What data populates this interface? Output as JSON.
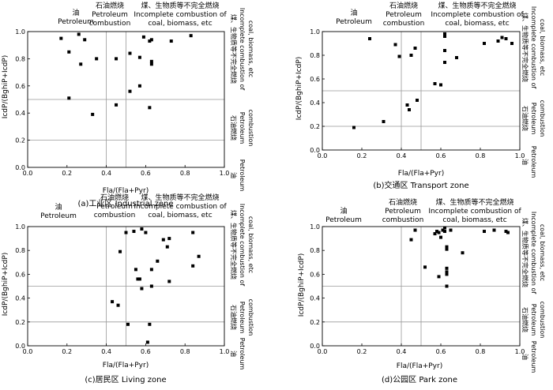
{
  "x_label": "Fla/(Fla+Pyr)",
  "y_label": "IcdP/(BghiP+IcdP)",
  "zones": {
    "oil_cn": "油",
    "oil_en": "Petroleum",
    "petcomb_cn": "石油燃烧",
    "petcomb_en1": "Petroleum",
    "petcomb_en2": "combustion",
    "coal_cn": "煤、生物质等不完全燃烧",
    "coal_en1": "Incomplete combustion of",
    "coal_en2": "coal, biomass, etc"
  },
  "styles": {
    "marker_color": "#000000",
    "guide_color": "#999999",
    "axis_color": "#000000"
  },
  "chart_data": [
    {
      "type": "scatter",
      "caption": "(a)工业区 Industrial zone",
      "xlabel": "Fla/(Fla+Pyr)",
      "ylabel": "IcdP/(BghiP+IcdP)",
      "xlim": [
        0,
        1.0
      ],
      "ylim": [
        0,
        1.0
      ],
      "xticks": [
        "0.0",
        "0.2",
        "0.4",
        "0.6",
        "0.8",
        "1.0"
      ],
      "yticks": [
        "0.0",
        "0.2",
        "0.4",
        "0.6",
        "0.8",
        "1.0"
      ],
      "guides": {
        "x": [
          0.4,
          0.5
        ],
        "y": [
          0.2,
          0.5
        ]
      },
      "points": [
        [
          0.17,
          0.95
        ],
        [
          0.21,
          0.85
        ],
        [
          0.26,
          0.98
        ],
        [
          0.27,
          0.76
        ],
        [
          0.29,
          0.94
        ],
        [
          0.35,
          0.8
        ],
        [
          0.21,
          0.51
        ],
        [
          0.33,
          0.39
        ],
        [
          0.45,
          0.8
        ],
        [
          0.52,
          0.84
        ],
        [
          0.45,
          0.46
        ],
        [
          0.52,
          0.56
        ],
        [
          0.57,
          0.81
        ],
        [
          0.57,
          0.6
        ],
        [
          0.59,
          0.96
        ],
        [
          0.62,
          0.93
        ],
        [
          0.63,
          0.94
        ],
        [
          0.63,
          0.78
        ],
        [
          0.63,
          0.76
        ],
        [
          0.62,
          0.44
        ],
        [
          0.73,
          0.93
        ],
        [
          0.83,
          0.97
        ]
      ]
    },
    {
      "type": "scatter",
      "caption": "(b)交通区 Transport zone",
      "xlabel": "Fla/(Fla+Pyr)",
      "ylabel": "IcdP/(BghiP+IcdP)",
      "xlim": [
        0,
        1.0
      ],
      "ylim": [
        0,
        1.0
      ],
      "xticks": [
        "0.0",
        "0.2",
        "0.4",
        "0.6",
        "0.8",
        "1.0"
      ],
      "yticks": [
        "0.0",
        "0.2",
        "0.4",
        "0.6",
        "0.8",
        "1.0"
      ],
      "guides": {
        "x": [
          0.4,
          0.5
        ],
        "y": [
          0.2,
          0.5
        ]
      },
      "points": [
        [
          0.16,
          0.19
        ],
        [
          0.24,
          0.94
        ],
        [
          0.31,
          0.24
        ],
        [
          0.37,
          0.89
        ],
        [
          0.39,
          0.79
        ],
        [
          0.43,
          0.38
        ],
        [
          0.44,
          0.34
        ],
        [
          0.45,
          0.8
        ],
        [
          0.47,
          0.86
        ],
        [
          0.48,
          0.42
        ],
        [
          0.57,
          0.56
        ],
        [
          0.6,
          0.55
        ],
        [
          0.62,
          0.98
        ],
        [
          0.62,
          0.96
        ],
        [
          0.62,
          0.84
        ],
        [
          0.62,
          0.74
        ],
        [
          0.68,
          0.78
        ],
        [
          0.82,
          0.9
        ],
        [
          0.89,
          0.92
        ],
        [
          0.91,
          0.95
        ],
        [
          0.93,
          0.94
        ],
        [
          0.96,
          0.9
        ]
      ]
    },
    {
      "type": "scatter",
      "caption": "(c)居民区 Living zone",
      "xlabel": "Fla/(Fla+Pyr)",
      "ylabel": "IcdP/(BghiP+IcdP)",
      "xlim": [
        0,
        1.0
      ],
      "ylim": [
        0,
        1.0
      ],
      "xticks": [
        "0.0",
        "0.2",
        "0.4",
        "0.6",
        "0.8",
        "1.0"
      ],
      "yticks": [
        "0.0",
        "0.2",
        "0.4",
        "0.6",
        "0.8",
        "1.0"
      ],
      "guides": {
        "x": [
          0.4,
          0.5
        ],
        "y": [
          0.2,
          0.5
        ]
      },
      "points": [
        [
          0.43,
          0.37
        ],
        [
          0.46,
          0.34
        ],
        [
          0.47,
          0.79
        ],
        [
          0.5,
          0.95
        ],
        [
          0.51,
          0.18
        ],
        [
          0.54,
          0.96
        ],
        [
          0.55,
          0.64
        ],
        [
          0.56,
          0.56
        ],
        [
          0.57,
          0.56
        ],
        [
          0.58,
          0.98
        ],
        [
          0.58,
          0.48
        ],
        [
          0.6,
          0.95
        ],
        [
          0.61,
          0.03
        ],
        [
          0.62,
          0.18
        ],
        [
          0.63,
          0.64
        ],
        [
          0.63,
          0.5
        ],
        [
          0.66,
          0.71
        ],
        [
          0.69,
          0.89
        ],
        [
          0.71,
          0.83
        ],
        [
          0.72,
          0.9
        ],
        [
          0.72,
          0.54
        ],
        [
          0.84,
          0.95
        ],
        [
          0.84,
          0.67
        ],
        [
          0.87,
          0.75
        ]
      ]
    },
    {
      "type": "scatter",
      "caption": "(d)公园区 Park zone",
      "xlabel": "Fla/(Fla+Pyr)",
      "ylabel": "IcdP/(BghiP+IcdP)",
      "xlim": [
        0,
        1.0
      ],
      "ylim": [
        0,
        1.0
      ],
      "xticks": [
        "0.0",
        "0.2",
        "0.4",
        "0.6",
        "0.8",
        "1.0"
      ],
      "yticks": [
        "0.0",
        "0.2",
        "0.4",
        "0.6",
        "0.8",
        "1.0"
      ],
      "guides": {
        "x": [
          0.4,
          0.5
        ],
        "y": [
          0.2,
          0.5
        ]
      },
      "points": [
        [
          0.45,
          0.89
        ],
        [
          0.47,
          0.97
        ],
        [
          0.52,
          0.66
        ],
        [
          0.57,
          0.94
        ],
        [
          0.58,
          0.96
        ],
        [
          0.59,
          0.58
        ],
        [
          0.59,
          0.95
        ],
        [
          0.6,
          0.91
        ],
        [
          0.61,
          0.97
        ],
        [
          0.62,
          0.96
        ],
        [
          0.62,
          0.99
        ],
        [
          0.63,
          0.83
        ],
        [
          0.63,
          0.81
        ],
        [
          0.63,
          0.65
        ],
        [
          0.63,
          0.62
        ],
        [
          0.63,
          0.6
        ],
        [
          0.63,
          0.5
        ],
        [
          0.65,
          0.97
        ],
        [
          0.71,
          0.78
        ],
        [
          0.82,
          0.96
        ],
        [
          0.87,
          0.97
        ],
        [
          0.93,
          0.96
        ],
        [
          0.94,
          0.95
        ]
      ]
    }
  ]
}
